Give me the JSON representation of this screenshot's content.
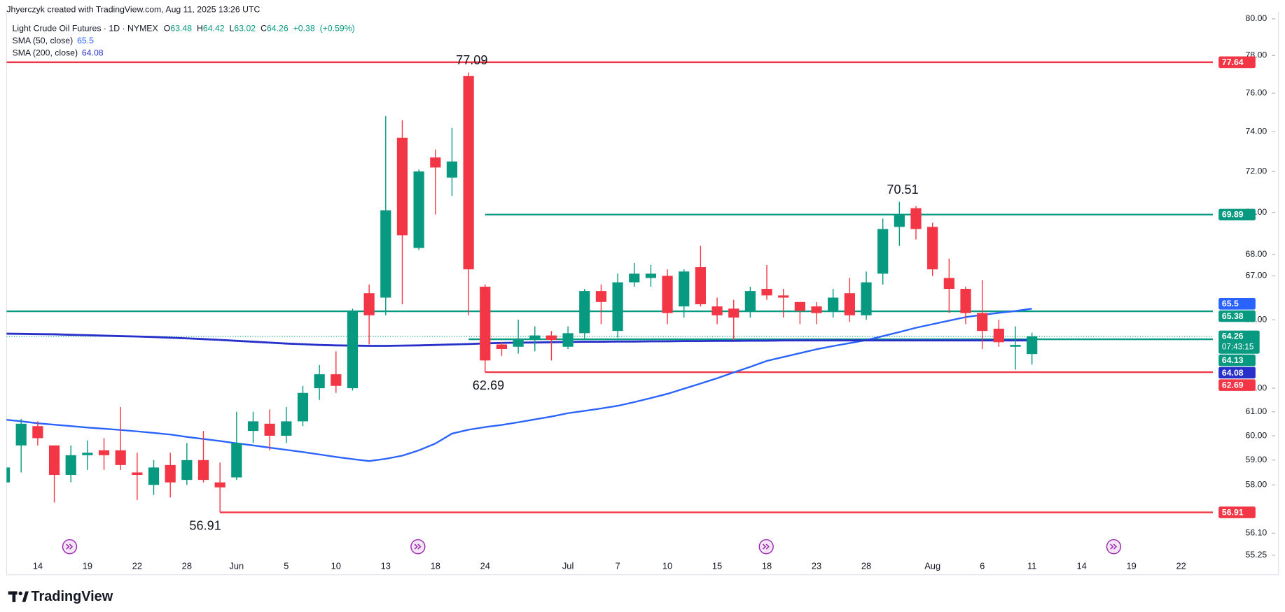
{
  "credit": "Jhyerczyk created with TradingView.com, Aug 11, 2025 13:26 UTC",
  "brand": "TradingView",
  "chart_data": {
    "type": "candlestick",
    "title": "Light Crude Oil Futures · 1D · NYMEX",
    "ohlc_labels": {
      "open": "O",
      "high": "H",
      "low": "L",
      "close": "C"
    },
    "change": {
      "value": 0.38,
      "label": "+0.38"
    },
    "change_pct": {
      "value": 0.59,
      "label": "(+0.59%)"
    },
    "countdown": "07:43:15",
    "colors": {
      "up": "#089981",
      "down": "#f23645"
    },
    "log_scale": true,
    "grid": false,
    "ylim": [
      55.2,
      80.4
    ],
    "yticks": [
      {
        "value": 80,
        "label": "80.00"
      },
      {
        "value": 78,
        "label": "78.00"
      },
      {
        "value": 76,
        "label": "76.00"
      },
      {
        "value": 74,
        "label": "74.00"
      },
      {
        "value": 72,
        "label": "72.00"
      },
      {
        "value": 70,
        "label": "70.00"
      },
      {
        "value": 68,
        "label": "68.00"
      },
      {
        "value": 67,
        "label": "67.00"
      },
      {
        "value": 65,
        "label": "65.00"
      },
      {
        "value": 62,
        "label": "62.00"
      },
      {
        "value": 61,
        "label": "61.00"
      },
      {
        "value": 60,
        "label": "60.00"
      },
      {
        "value": 59,
        "label": "59.00"
      },
      {
        "value": 58,
        "label": "58.00"
      },
      {
        "value": 56.1,
        "label": "56.10"
      },
      {
        "value": 55.25,
        "label": "55.25"
      }
    ],
    "categories": [
      null,
      null,
      "14",
      null,
      null,
      "19",
      null,
      null,
      "22",
      null,
      null,
      "28",
      null,
      null,
      "Jun",
      null,
      null,
      "5",
      null,
      null,
      "10",
      null,
      null,
      "13",
      null,
      null,
      "18",
      null,
      null,
      "24",
      null,
      null,
      null,
      null,
      "Jul",
      null,
      null,
      "7",
      null,
      null,
      "10",
      null,
      null,
      "15",
      null,
      null,
      "18",
      null,
      null,
      "23",
      null,
      null,
      "28",
      null,
      null,
      null,
      "Aug",
      null,
      null,
      "6",
      null,
      null,
      "11",
      null,
      null,
      "14",
      null,
      null,
      "19",
      null,
      null,
      "22"
    ],
    "ohlc": [
      {
        "open": 58.1,
        "high": 58.8,
        "low": 58.0,
        "close": 58.7
      },
      {
        "open": 59.6,
        "high": 60.7,
        "low": 58.5,
        "close": 60.5
      },
      {
        "open": 60.4,
        "high": 60.6,
        "low": 59.6,
        "close": 59.9
      },
      {
        "open": 59.6,
        "high": 59.6,
        "low": 57.3,
        "close": 58.4
      },
      {
        "open": 58.4,
        "high": 59.6,
        "low": 58.1,
        "close": 59.2
      },
      {
        "open": 59.2,
        "high": 59.8,
        "low": 58.6,
        "close": 59.3
      },
      {
        "open": 59.4,
        "high": 59.9,
        "low": 58.6,
        "close": 59.2
      },
      {
        "open": 59.4,
        "high": 61.2,
        "low": 58.6,
        "close": 58.8
      },
      {
        "open": 58.5,
        "high": 59.3,
        "low": 57.4,
        "close": 58.4
      },
      {
        "open": 58.0,
        "high": 59.0,
        "low": 57.6,
        "close": 58.7
      },
      {
        "open": 58.8,
        "high": 59.3,
        "low": 57.5,
        "close": 58.1
      },
      {
        "open": 58.2,
        "high": 59.7,
        "low": 58.0,
        "close": 59.0
      },
      {
        "open": 59.0,
        "high": 60.2,
        "low": 58.1,
        "close": 58.2
      },
      {
        "open": 58.1,
        "high": 58.9,
        "low": 56.91,
        "close": 57.9
      },
      {
        "open": 58.3,
        "high": 61.0,
        "low": 58.2,
        "close": 59.7
      },
      {
        "open": 60.2,
        "high": 61.0,
        "low": 59.7,
        "close": 60.6
      },
      {
        "open": 60.5,
        "high": 61.1,
        "low": 59.4,
        "close": 60.0
      },
      {
        "open": 60.0,
        "high": 61.2,
        "low": 59.7,
        "close": 60.6
      },
      {
        "open": 60.6,
        "high": 62.1,
        "low": 60.4,
        "close": 61.8
      },
      {
        "open": 62.0,
        "high": 63.0,
        "low": 61.5,
        "close": 62.6
      },
      {
        "open": 62.6,
        "high": 63.6,
        "low": 61.8,
        "close": 62.1
      },
      {
        "open": 62.0,
        "high": 65.5,
        "low": 61.9,
        "close": 65.4
      },
      {
        "open": 66.2,
        "high": 66.6,
        "low": 63.9,
        "close": 65.2
      },
      {
        "open": 66.0,
        "high": 74.8,
        "low": 65.2,
        "close": 70.1
      },
      {
        "open": 73.7,
        "high": 74.6,
        "low": 65.7,
        "close": 68.9
      },
      {
        "open": 68.3,
        "high": 72.1,
        "low": 68.2,
        "close": 72.0
      },
      {
        "open": 72.7,
        "high": 73.1,
        "low": 69.9,
        "close": 72.2
      },
      {
        "open": 71.7,
        "high": 74.2,
        "low": 70.8,
        "close": 72.5
      },
      {
        "open": 76.9,
        "high": 77.09,
        "low": 65.2,
        "close": 67.3
      },
      {
        "open": 66.5,
        "high": 66.6,
        "low": 62.69,
        "close": 63.2
      },
      {
        "open": 63.9,
        "high": 64.0,
        "low": 63.4,
        "close": 63.7
      },
      {
        "open": 63.8,
        "high": 65.0,
        "low": 63.5,
        "close": 64.1
      },
      {
        "open": 64.1,
        "high": 64.7,
        "low": 63.6,
        "close": 64.3
      },
      {
        "open": 64.3,
        "high": 64.5,
        "low": 63.2,
        "close": 64.1
      },
      {
        "open": 63.8,
        "high": 64.7,
        "low": 63.7,
        "close": 64.4
      },
      {
        "open": 64.4,
        "high": 66.4,
        "low": 64.1,
        "close": 66.3
      },
      {
        "open": 66.3,
        "high": 66.6,
        "low": 64.8,
        "close": 65.8
      },
      {
        "open": 64.5,
        "high": 67.1,
        "low": 64.2,
        "close": 66.7
      },
      {
        "open": 66.7,
        "high": 67.6,
        "low": 66.5,
        "close": 67.1
      },
      {
        "open": 66.9,
        "high": 67.5,
        "low": 66.5,
        "close": 67.1
      },
      {
        "open": 67.0,
        "high": 67.3,
        "low": 64.8,
        "close": 65.3
      },
      {
        "open": 65.6,
        "high": 67.3,
        "low": 65.1,
        "close": 67.2
      },
      {
        "open": 67.4,
        "high": 68.4,
        "low": 65.6,
        "close": 65.7
      },
      {
        "open": 65.6,
        "high": 66.0,
        "low": 64.8,
        "close": 65.2
      },
      {
        "open": 65.5,
        "high": 65.9,
        "low": 64.1,
        "close": 65.1
      },
      {
        "open": 65.4,
        "high": 66.5,
        "low": 65.1,
        "close": 66.3
      },
      {
        "open": 66.4,
        "high": 67.5,
        "low": 65.9,
        "close": 66.1
      },
      {
        "open": 66.1,
        "high": 66.4,
        "low": 65.1,
        "close": 66.0
      },
      {
        "open": 65.8,
        "high": 65.8,
        "low": 64.8,
        "close": 65.4
      },
      {
        "open": 65.6,
        "high": 65.8,
        "low": 64.8,
        "close": 65.3
      },
      {
        "open": 65.4,
        "high": 66.4,
        "low": 65.1,
        "close": 66.0
      },
      {
        "open": 66.2,
        "high": 66.9,
        "low": 64.9,
        "close": 65.2
      },
      {
        "open": 65.2,
        "high": 67.2,
        "low": 65.0,
        "close": 66.7
      },
      {
        "open": 67.1,
        "high": 69.7,
        "low": 66.6,
        "close": 69.2
      },
      {
        "open": 69.3,
        "high": 70.51,
        "low": 68.4,
        "close": 69.9
      },
      {
        "open": 70.2,
        "high": 70.3,
        "low": 68.7,
        "close": 69.2
      },
      {
        "open": 69.3,
        "high": 69.5,
        "low": 67.0,
        "close": 67.3
      },
      {
        "open": 66.9,
        "high": 67.8,
        "low": 65.3,
        "close": 66.4
      },
      {
        "open": 66.4,
        "high": 66.5,
        "low": 64.8,
        "close": 65.3
      },
      {
        "open": 65.3,
        "high": 66.8,
        "low": 63.7,
        "close": 64.5
      },
      {
        "open": 64.6,
        "high": 65.0,
        "low": 63.8,
        "close": 64.0
      },
      {
        "open": 63.8,
        "high": 64.7,
        "low": 62.8,
        "close": 63.88
      },
      {
        "open": 63.48,
        "high": 64.42,
        "low": 63.02,
        "close": 64.26
      },
      null,
      null,
      null,
      null,
      null,
      null,
      null,
      null,
      null
    ],
    "series": [
      {
        "name": "SMA (50, close)",
        "color": "#2962ff",
        "values": [
          60.67,
          60.6,
          60.52,
          60.46,
          60.4,
          60.34,
          60.29,
          60.24,
          60.18,
          60.12,
          60.05,
          59.95,
          59.87,
          59.78,
          59.69,
          59.6,
          59.51,
          59.42,
          59.33,
          59.23,
          59.13,
          59.04,
          58.96,
          59.05,
          59.18,
          59.4,
          59.68,
          60.09,
          60.25,
          60.36,
          60.45,
          60.56,
          60.68,
          60.8,
          60.94,
          61.04,
          61.14,
          61.25,
          61.41,
          61.58,
          61.76,
          61.98,
          62.2,
          62.43,
          62.68,
          62.92,
          63.18,
          63.35,
          63.52,
          63.69,
          63.83,
          63.96,
          64.09,
          64.27,
          64.45,
          64.64,
          64.8,
          64.96,
          65.12,
          65.22,
          65.31,
          65.39,
          65.5,
          null,
          null,
          null,
          null,
          null,
          null,
          null,
          null,
          null
        ]
      },
      {
        "name": "SMA (200, close)",
        "color": "#2730c9",
        "values": [
          64.38,
          64.37,
          64.36,
          64.35,
          64.33,
          64.31,
          64.29,
          64.27,
          64.25,
          64.23,
          64.2,
          64.17,
          64.14,
          64.1,
          64.06,
          64.02,
          63.98,
          63.94,
          63.91,
          63.88,
          63.86,
          63.85,
          63.84,
          63.84,
          63.85,
          63.86,
          63.88,
          63.9,
          63.92,
          63.95,
          63.97,
          63.98,
          63.99,
          64.0,
          64.01,
          64.02,
          64.02,
          64.03,
          64.03,
          64.04,
          64.04,
          64.05,
          64.05,
          64.06,
          64.06,
          64.07,
          64.07,
          64.08,
          64.08,
          64.08,
          64.08,
          64.08,
          64.08,
          64.08,
          64.08,
          64.08,
          64.08,
          64.08,
          64.08,
          64.08,
          64.08,
          64.08,
          64.08,
          null,
          null,
          null,
          null,
          null,
          null,
          null,
          null,
          null
        ]
      }
    ],
    "levels": [
      {
        "value": 77.64,
        "color": "#f23645"
      },
      {
        "value": 69.89,
        "color": "#089981",
        "start": 29
      },
      {
        "value": 65.38,
        "color": "#089981"
      },
      {
        "value": 64.13,
        "color": "#089981",
        "start": 28
      },
      {
        "value": 62.69,
        "color": "#f23645",
        "start": 29
      },
      {
        "value": 56.91,
        "color": "#f23645",
        "start": 13
      }
    ],
    "annotations": [
      {
        "value": 77.09,
        "at": "high"
      },
      {
        "value": 70.51,
        "at": "high"
      },
      {
        "value": 62.69,
        "at": "low"
      },
      {
        "value": 56.91,
        "at": "low"
      }
    ]
  }
}
